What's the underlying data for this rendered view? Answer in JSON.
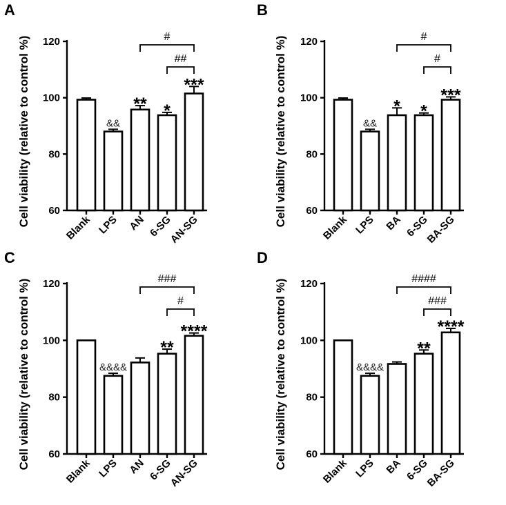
{
  "chart_data": [
    {
      "panel": "A",
      "type": "bar",
      "ylabel": "Cell viability (relative to control %)",
      "ylim": [
        60,
        120
      ],
      "yticks": [
        60,
        80,
        100,
        120
      ],
      "categories": [
        "Blank",
        "LPS",
        "AN",
        "6-SG",
        "AN-SG"
      ],
      "values": [
        99.3,
        88.0,
        95.8,
        93.8,
        101.5
      ],
      "errors": [
        0.6,
        0.8,
        1.4,
        1.0,
        2.5
      ],
      "annotations": [
        "",
        "&&",
        "**",
        "*",
        "***"
      ],
      "brackets": [
        {
          "from": "AN",
          "to": "AN-SG",
          "label": "#"
        },
        {
          "from": "6-SG",
          "to": "AN-SG",
          "label": "##"
        }
      ]
    },
    {
      "panel": "B",
      "type": "bar",
      "ylabel": "Cell viability (relative to control %)",
      "ylim": [
        60,
        120
      ],
      "yticks": [
        60,
        80,
        100,
        120
      ],
      "categories": [
        "Blank",
        "LPS",
        "BA",
        "6-SG",
        "BA-SG"
      ],
      "values": [
        99.3,
        88.0,
        93.8,
        93.8,
        99.3
      ],
      "errors": [
        0.6,
        0.8,
        2.6,
        0.8,
        1.0
      ],
      "annotations": [
        "",
        "&&",
        "*",
        "*",
        "***"
      ],
      "brackets": [
        {
          "from": "BA",
          "to": "BA-SG",
          "label": "#"
        },
        {
          "from": "6-SG",
          "to": "BA-SG",
          "label": "#"
        }
      ]
    },
    {
      "panel": "C",
      "type": "bar",
      "ylabel": "Cell viability (relative to control %)",
      "ylim": [
        60,
        120
      ],
      "yticks": [
        60,
        80,
        100,
        120
      ],
      "categories": [
        "Blank",
        "LPS",
        "AN",
        "6-SG",
        "AN-SG"
      ],
      "values": [
        100,
        87.5,
        92.2,
        95.3,
        101.6
      ],
      "errors": [
        0,
        0.9,
        1.6,
        1.6,
        1.0
      ],
      "annotations": [
        "",
        "&&&&",
        "",
        "**",
        "****"
      ],
      "brackets": [
        {
          "from": "AN",
          "to": "AN-SG",
          "label": "###"
        },
        {
          "from": "6-SG",
          "to": "AN-SG",
          "label": "#"
        }
      ]
    },
    {
      "panel": "D",
      "type": "bar",
      "ylabel": "Cell viability (relative to control %)",
      "ylim": [
        60,
        120
      ],
      "yticks": [
        60,
        80,
        100,
        120
      ],
      "categories": [
        "Blank",
        "LPS",
        "BA",
        "6-SG",
        "BA-SG"
      ],
      "values": [
        100,
        87.5,
        91.7,
        95.3,
        102.8
      ],
      "errors": [
        0,
        0.9,
        0.7,
        1.3,
        1.4
      ],
      "annotations": [
        "",
        "&&&&",
        "",
        "**",
        "****"
      ],
      "brackets": [
        {
          "from": "BA",
          "to": "BA-SG",
          "label": "####"
        },
        {
          "from": "6-SG",
          "to": "BA-SG",
          "label": "###"
        }
      ]
    }
  ]
}
